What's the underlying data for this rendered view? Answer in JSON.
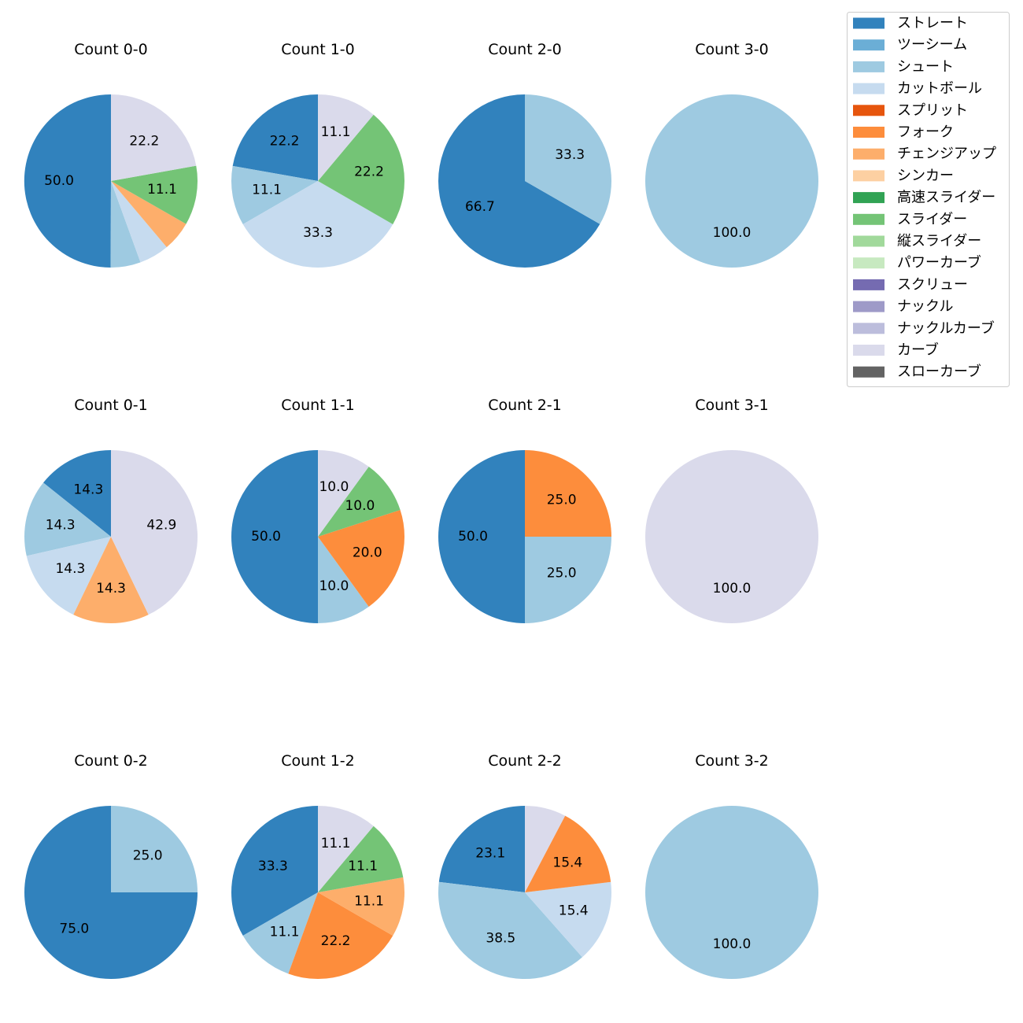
{
  "legend": [
    {
      "name": "ストレート",
      "color": "#3182bd"
    },
    {
      "name": "ツーシーム",
      "color": "#6baed6"
    },
    {
      "name": "シュート",
      "color": "#9ecae1"
    },
    {
      "name": "カットボール",
      "color": "#c6dbef"
    },
    {
      "name": "スプリット",
      "color": "#e6550d"
    },
    {
      "name": "フォーク",
      "color": "#fd8d3c"
    },
    {
      "name": "チェンジアップ",
      "color": "#fdae6b"
    },
    {
      "name": "シンカー",
      "color": "#fdd0a2"
    },
    {
      "name": "高速スライダー",
      "color": "#31a354"
    },
    {
      "name": "スライダー",
      "color": "#74c476"
    },
    {
      "name": "縦スライダー",
      "color": "#a1d99b"
    },
    {
      "name": "パワーカーブ",
      "color": "#c7e9c0"
    },
    {
      "name": "スクリュー",
      "color": "#756bb1"
    },
    {
      "name": "ナックル",
      "color": "#9e9ac8"
    },
    {
      "name": "ナックルカーブ",
      "color": "#bcbddc"
    },
    {
      "name": "カーブ",
      "color": "#dadaeb"
    },
    {
      "name": "スローカーブ",
      "color": "#636363"
    }
  ],
  "chart_data": [
    {
      "type": "pie",
      "title": "Count 0-0",
      "row": 0,
      "col": 0,
      "slices": [
        {
          "pitch": "ストレート",
          "value": 50.0,
          "label": "50.0"
        },
        {
          "pitch": "シュート",
          "value": 5.6,
          "label": ""
        },
        {
          "pitch": "カットボール",
          "value": 5.6,
          "label": ""
        },
        {
          "pitch": "チェンジアップ",
          "value": 5.6,
          "label": ""
        },
        {
          "pitch": "スライダー",
          "value": 11.1,
          "label": "11.1"
        },
        {
          "pitch": "カーブ",
          "value": 22.2,
          "label": "22.2"
        }
      ]
    },
    {
      "type": "pie",
      "title": "Count 1-0",
      "row": 0,
      "col": 1,
      "slices": [
        {
          "pitch": "ストレート",
          "value": 22.2,
          "label": "22.2"
        },
        {
          "pitch": "シュート",
          "value": 11.1,
          "label": "11.1"
        },
        {
          "pitch": "カットボール",
          "value": 33.3,
          "label": "33.3"
        },
        {
          "pitch": "スライダー",
          "value": 22.2,
          "label": "22.2"
        },
        {
          "pitch": "カーブ",
          "value": 11.1,
          "label": "11.1"
        }
      ]
    },
    {
      "type": "pie",
      "title": "Count 2-0",
      "row": 0,
      "col": 2,
      "slices": [
        {
          "pitch": "ストレート",
          "value": 66.7,
          "label": "66.7"
        },
        {
          "pitch": "シュート",
          "value": 33.3,
          "label": "33.3"
        }
      ]
    },
    {
      "type": "pie",
      "title": "Count 3-0",
      "row": 0,
      "col": 3,
      "slices": [
        {
          "pitch": "シュート",
          "value": 100.0,
          "label": "100.0"
        }
      ]
    },
    {
      "type": "pie",
      "title": "Count 0-1",
      "row": 1,
      "col": 0,
      "slices": [
        {
          "pitch": "ストレート",
          "value": 14.3,
          "label": "14.3"
        },
        {
          "pitch": "シュート",
          "value": 14.3,
          "label": "14.3"
        },
        {
          "pitch": "カットボール",
          "value": 14.3,
          "label": "14.3"
        },
        {
          "pitch": "チェンジアップ",
          "value": 14.3,
          "label": "14.3"
        },
        {
          "pitch": "カーブ",
          "value": 42.9,
          "label": "42.9"
        }
      ]
    },
    {
      "type": "pie",
      "title": "Count 1-1",
      "row": 1,
      "col": 1,
      "slices": [
        {
          "pitch": "ストレート",
          "value": 50.0,
          "label": "50.0"
        },
        {
          "pitch": "シュート",
          "value": 10.0,
          "label": "10.0"
        },
        {
          "pitch": "フォーク",
          "value": 20.0,
          "label": "20.0"
        },
        {
          "pitch": "スライダー",
          "value": 10.0,
          "label": "10.0"
        },
        {
          "pitch": "カーブ",
          "value": 10.0,
          "label": "10.0"
        }
      ]
    },
    {
      "type": "pie",
      "title": "Count 2-1",
      "row": 1,
      "col": 2,
      "slices": [
        {
          "pitch": "ストレート",
          "value": 50.0,
          "label": "50.0"
        },
        {
          "pitch": "シュート",
          "value": 25.0,
          "label": "25.0"
        },
        {
          "pitch": "フォーク",
          "value": 25.0,
          "label": "25.0"
        }
      ]
    },
    {
      "type": "pie",
      "title": "Count 3-1",
      "row": 1,
      "col": 3,
      "slices": [
        {
          "pitch": "カーブ",
          "value": 100.0,
          "label": "100.0"
        }
      ]
    },
    {
      "type": "pie",
      "title": "Count 0-2",
      "row": 2,
      "col": 0,
      "slices": [
        {
          "pitch": "ストレート",
          "value": 75.0,
          "label": "75.0"
        },
        {
          "pitch": "シュート",
          "value": 25.0,
          "label": "25.0"
        }
      ]
    },
    {
      "type": "pie",
      "title": "Count 1-2",
      "row": 2,
      "col": 1,
      "slices": [
        {
          "pitch": "ストレート",
          "value": 33.3,
          "label": "33.3"
        },
        {
          "pitch": "シュート",
          "value": 11.1,
          "label": "11.1"
        },
        {
          "pitch": "フォーク",
          "value": 22.2,
          "label": "22.2"
        },
        {
          "pitch": "チェンジアップ",
          "value": 11.1,
          "label": "11.1"
        },
        {
          "pitch": "スライダー",
          "value": 11.1,
          "label": "11.1"
        },
        {
          "pitch": "カーブ",
          "value": 11.1,
          "label": "11.1"
        }
      ]
    },
    {
      "type": "pie",
      "title": "Count 2-2",
      "row": 2,
      "col": 2,
      "slices": [
        {
          "pitch": "ストレート",
          "value": 23.1,
          "label": "23.1"
        },
        {
          "pitch": "シュート",
          "value": 38.5,
          "label": "38.5"
        },
        {
          "pitch": "カットボール",
          "value": 15.4,
          "label": "15.4"
        },
        {
          "pitch": "フォーク",
          "value": 15.4,
          "label": "15.4"
        },
        {
          "pitch": "カーブ",
          "value": 7.7,
          "label": ""
        }
      ]
    },
    {
      "type": "pie",
      "title": "Count 3-2",
      "row": 2,
      "col": 3,
      "slices": [
        {
          "pitch": "シュート",
          "value": 100.0,
          "label": "100.0"
        }
      ]
    }
  ]
}
